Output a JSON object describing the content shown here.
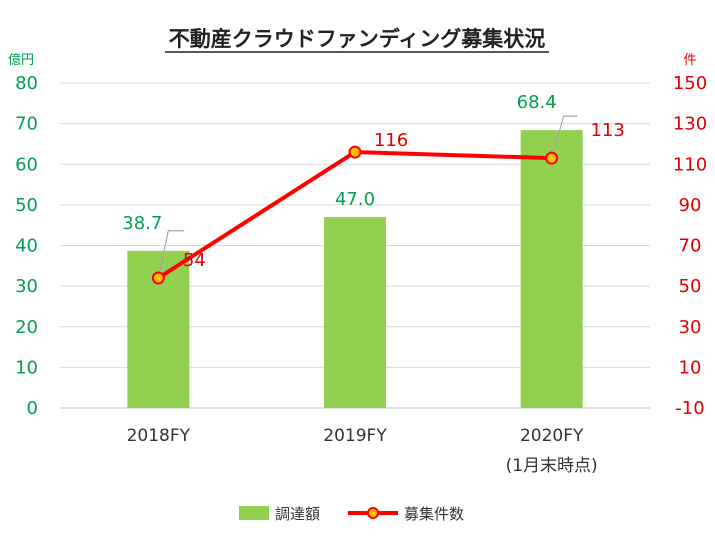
{
  "chart_data": {
    "type": "bar+line",
    "title": "不動産クラウドファンディング募集状況",
    "categories": [
      "2018FY",
      "2019FY",
      "2020FY"
    ],
    "category_sublabels": [
      "",
      "",
      "(1月末時点)"
    ],
    "left_axis": {
      "unit": "億円",
      "ylim": [
        0,
        80
      ],
      "ticks": [
        0,
        10,
        20,
        30,
        40,
        50,
        60,
        70,
        80
      ],
      "color": "#00A050"
    },
    "right_axis": {
      "unit": "件",
      "ylim": [
        -10,
        150
      ],
      "ticks": [
        -10,
        10,
        30,
        50,
        70,
        90,
        110,
        130,
        150
      ],
      "color": "#E00000"
    },
    "series": [
      {
        "name": "調達額",
        "type": "bar",
        "axis": "left",
        "values": [
          38.7,
          47.0,
          68.4
        ],
        "labels": [
          "38.7",
          "47.0",
          "68.4"
        ],
        "color": "#92D050",
        "label_color": "#00A050"
      },
      {
        "name": "募集件数",
        "type": "line",
        "axis": "right",
        "values": [
          54,
          116,
          113
        ],
        "labels": [
          "54",
          "116",
          "113"
        ],
        "color": "#FF0000",
        "marker_color": "#FFC000",
        "label_color": "#E00000"
      }
    ],
    "grid": true,
    "legend_position": "bottom"
  }
}
